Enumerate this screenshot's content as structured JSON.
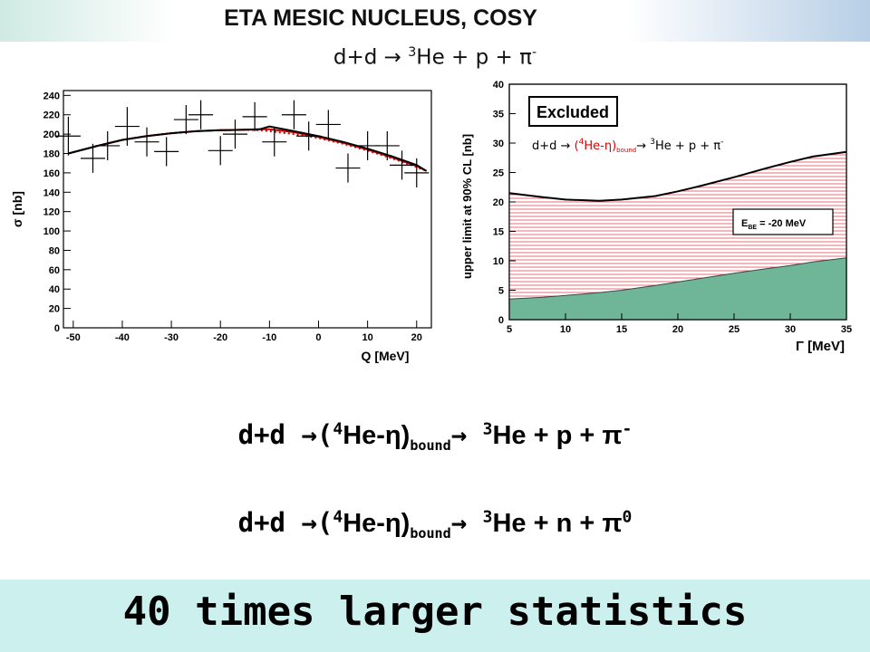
{
  "header": {
    "title": "ETA MESIC NUCLEUS,       COSY",
    "reaction_prefix": "d+d → ",
    "reaction_sup": "3",
    "reaction_suffix": "He + p + π",
    "reaction_charge": "-"
  },
  "chart_data": [
    {
      "type": "scatter",
      "xlabel": "Q [MeV]",
      "ylabel": "σ [nb]",
      "xlim": [
        -52,
        23
      ],
      "ylim": [
        0,
        245
      ],
      "xticks": [
        -50,
        -40,
        -30,
        -20,
        -10,
        0,
        10,
        20
      ],
      "yticks": [
        0,
        20,
        40,
        60,
        80,
        100,
        120,
        140,
        160,
        180,
        200,
        220,
        240
      ],
      "points": [
        {
          "x": -51,
          "y": 198,
          "dx": 2.5,
          "dy": 20
        },
        {
          "x": -46,
          "y": 175,
          "dx": 2.5,
          "dy": 15
        },
        {
          "x": -43,
          "y": 188,
          "dx": 2.5,
          "dy": 15
        },
        {
          "x": -39,
          "y": 208,
          "dx": 2.5,
          "dy": 20
        },
        {
          "x": -35,
          "y": 192,
          "dx": 2.5,
          "dy": 15
        },
        {
          "x": -31,
          "y": 182,
          "dx": 2.5,
          "dy": 15
        },
        {
          "x": -27,
          "y": 215,
          "dx": 2.5,
          "dy": 15
        },
        {
          "x": -24,
          "y": 220,
          "dx": 2.5,
          "dy": 15
        },
        {
          "x": -20,
          "y": 183,
          "dx": 2.5,
          "dy": 15
        },
        {
          "x": -17,
          "y": 200,
          "dx": 2.5,
          "dy": 15
        },
        {
          "x": -13,
          "y": 218,
          "dx": 2.5,
          "dy": 15
        },
        {
          "x": -9,
          "y": 192,
          "dx": 2.5,
          "dy": 15
        },
        {
          "x": -5,
          "y": 220,
          "dx": 2.5,
          "dy": 15
        },
        {
          "x": -2,
          "y": 198,
          "dx": 2.5,
          "dy": 15
        },
        {
          "x": 2,
          "y": 210,
          "dx": 2.5,
          "dy": 15
        },
        {
          "x": 6,
          "y": 165,
          "dx": 2.5,
          "dy": 15
        },
        {
          "x": 10,
          "y": 188,
          "dx": 2.5,
          "dy": 15
        },
        {
          "x": 14,
          "y": 188,
          "dx": 2.5,
          "dy": 15
        },
        {
          "x": 17,
          "y": 168,
          "dx": 2.5,
          "dy": 15
        },
        {
          "x": 20,
          "y": 160,
          "dx": 2.5,
          "dy": 15
        }
      ],
      "curves": [
        {
          "style": "solid black",
          "x": [
            -51,
            -45,
            -40,
            -35,
            -30,
            -25,
            -20,
            -15,
            -12,
            -10,
            -5,
            0,
            5,
            10,
            15,
            20,
            22
          ],
          "y": [
            180,
            188,
            194,
            198,
            201,
            203,
            204,
            204.5,
            205,
            208,
            203,
            198,
            192,
            185,
            177,
            168,
            162
          ]
        },
        {
          "style": "solid red",
          "x": [
            -51,
            -45,
            -40,
            -35,
            -30,
            -25,
            -20,
            -15,
            -12,
            -10,
            -5,
            0,
            5,
            10,
            15,
            20,
            22
          ],
          "y": [
            180,
            188,
            194,
            198,
            201,
            203,
            204,
            204.5,
            205,
            205,
            202,
            197,
            191,
            184,
            176,
            167,
            162
          ]
        },
        {
          "style": "dotted red",
          "x": [
            -51,
            -45,
            -40,
            -35,
            -30,
            -25,
            -20,
            -15,
            -12,
            -10,
            -5,
            0,
            5,
            10,
            15,
            20,
            22
          ],
          "y": [
            180,
            188,
            194,
            198,
            201,
            203,
            204,
            204.5,
            204,
            203,
            200,
            196,
            190,
            183,
            175,
            166,
            162
          ]
        }
      ],
      "colors": {
        "points": "#000000",
        "fit": "#000000",
        "fit_red": "#cc0000"
      }
    },
    {
      "type": "area",
      "xlabel": "Γ [MeV]",
      "ylabel": "upper limit at 90% CL [nb]",
      "xlim": [
        5,
        35
      ],
      "ylim": [
        0,
        40
      ],
      "xticks": [
        5,
        10,
        15,
        20,
        25,
        30,
        35
      ],
      "yticks": [
        0,
        5,
        10,
        15,
        20,
        25,
        30,
        35,
        40
      ],
      "upper_limit": {
        "x": [
          5,
          8,
          10,
          13,
          15,
          18,
          20,
          22,
          25,
          28,
          30,
          32,
          35
        ],
        "y": [
          21.5,
          20.8,
          20.4,
          20.2,
          20.4,
          21.0,
          21.8,
          22.7,
          24.2,
          25.8,
          26.8,
          27.7,
          28.5
        ]
      },
      "lower_curve": {
        "x": [
          5,
          8,
          10,
          13,
          15,
          18,
          20,
          22,
          25,
          28,
          30,
          32,
          35
        ],
        "y": [
          3.5,
          3.8,
          4.1,
          4.6,
          5.0,
          5.8,
          6.4,
          7.0,
          7.9,
          8.7,
          9.2,
          9.8,
          10.5
        ]
      },
      "excluded_label": "Excluded",
      "legend": "E",
      "legend_sub": "BE",
      "legend_value": " = -20 MeV",
      "annotation": {
        "prefix": "d+d → ",
        "paren_open": "(",
        "sup4": "4",
        "he_eta": "He-η)",
        "bound": "bound",
        "arrow": "→ ",
        "sup3": "3",
        "tail": "He + p + π",
        "charge": "-"
      },
      "colors": {
        "hatch": "#e8707a",
        "green": "#6fb597",
        "curve": "#000000",
        "annotation_red": "#dd0000"
      }
    }
  ],
  "reactions": [
    {
      "prefix": "d+d →(",
      "sup4": "4",
      "mid": "He-η)",
      "sub": "bound",
      "arrow": "→ ",
      "sup3": "3",
      "tail": "He + p + π",
      "charge": "-"
    },
    {
      "prefix": "d+d →(",
      "sup4": "4",
      "mid": "He-η)",
      "sub": "bound",
      "arrow": "→ ",
      "sup3": "3",
      "tail": "He + n + π",
      "charge": "0"
    }
  ],
  "footer": {
    "text": "40 times larger statistics"
  }
}
